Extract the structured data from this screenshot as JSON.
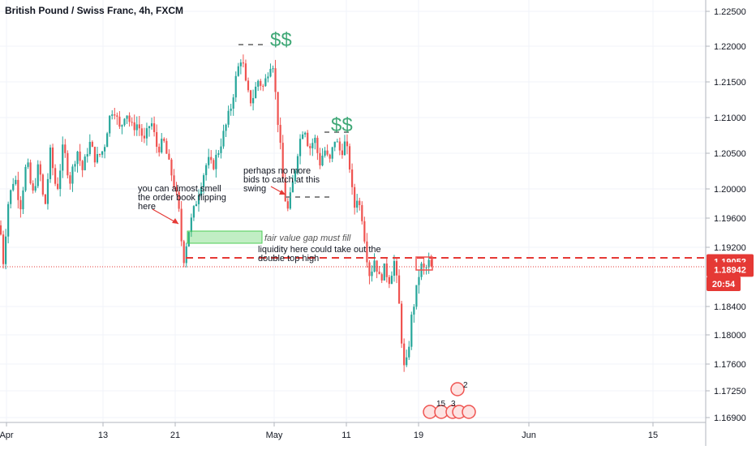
{
  "chart_data": {
    "type": "candlestick",
    "title": "British Pound / Swiss Franc, 4h, FXCM",
    "ylim": [
      1.1685,
      1.2265
    ],
    "y_ticks": [
      "1.22500",
      "1.22000",
      "1.21500",
      "1.21000",
      "1.20500",
      "1.20000",
      "1.19600",
      "1.19200",
      "1.18400",
      "1.18000",
      "1.17600",
      "1.17250",
      "1.16900"
    ],
    "x_ticks": [
      "Apr",
      "13",
      "21",
      "May",
      "11",
      "19",
      "Jun",
      "15"
    ],
    "colors": {
      "up": "#26a69a",
      "down": "#ef5350",
      "label_red": "#e53935"
    },
    "price_labels": [
      {
        "text": "1.19052",
        "value": 1.19052
      },
      {
        "text": "1.18942",
        "value": 1.18942
      },
      {
        "text": "20:54",
        "value": 1.18745
      }
    ],
    "path_points": [
      [
        0,
        1.1955
      ],
      [
        4,
        1.1905
      ],
      [
        10,
        1.1985
      ],
      [
        18,
        1.2025
      ],
      [
        25,
        1.198
      ],
      [
        33,
        1.2045
      ],
      [
        40,
        1.1995
      ],
      [
        48,
        1.204
      ],
      [
        55,
        1.1975
      ],
      [
        62,
        1.2055
      ],
      [
        70,
        1.2
      ],
      [
        78,
        1.2065
      ],
      [
        86,
        1.2015
      ],
      [
        95,
        1.206
      ],
      [
        102,
        1.203
      ],
      [
        110,
        1.207
      ],
      [
        118,
        1.2045
      ],
      [
        128,
        1.206
      ],
      [
        134,
        1.21
      ],
      [
        140,
        1.212
      ],
      [
        148,
        1.2085
      ],
      [
        155,
        1.2115
      ],
      [
        162,
        1.209
      ],
      [
        170,
        1.2095
      ],
      [
        178,
        1.207
      ],
      [
        186,
        1.21
      ],
      [
        194,
        1.206
      ],
      [
        202,
        1.207
      ],
      [
        208,
        1.204
      ],
      [
        214,
        1.2015
      ],
      [
        220,
        1.198
      ],
      [
        226,
        1.1905
      ],
      [
        232,
        1.1945
      ],
      [
        240,
        1.198
      ],
      [
        248,
        1.2015
      ],
      [
        256,
        1.2045
      ],
      [
        262,
        1.2035
      ],
      [
        270,
        1.206
      ],
      [
        278,
        1.209
      ],
      [
        285,
        1.212
      ],
      [
        292,
        1.2165
      ],
      [
        298,
        1.219
      ],
      [
        304,
        1.214
      ],
      [
        310,
        1.2125
      ],
      [
        318,
        1.2155
      ],
      [
        325,
        1.2145
      ],
      [
        332,
        1.2175
      ],
      [
        336,
        1.2185
      ],
      [
        340,
        1.213
      ],
      [
        345,
        1.207
      ],
      [
        350,
        1.2
      ],
      [
        355,
        1.1975
      ],
      [
        362,
        1.202
      ],
      [
        368,
        1.2065
      ],
      [
        375,
        1.2095
      ],
      [
        381,
        1.206
      ],
      [
        388,
        1.2075
      ],
      [
        394,
        1.204
      ],
      [
        400,
        1.206
      ],
      [
        406,
        1.204
      ],
      [
        413,
        1.2075
      ],
      [
        420,
        1.2055
      ],
      [
        426,
        1.207
      ],
      [
        432,
        1.203
      ],
      [
        436,
        1.1975
      ],
      [
        440,
        1.1995
      ],
      [
        446,
        1.197
      ],
      [
        452,
        1.1915
      ],
      [
        456,
        1.1885
      ],
      [
        462,
        1.191
      ],
      [
        468,
        1.188
      ],
      [
        474,
        1.1895
      ],
      [
        480,
        1.188
      ],
      [
        486,
        1.1905
      ],
      [
        490,
        1.187
      ],
      [
        494,
        1.182
      ],
      [
        497,
        1.176
      ],
      [
        500,
        1.1755
      ],
      [
        504,
        1.179
      ],
      [
        508,
        1.1835
      ],
      [
        512,
        1.1855
      ],
      [
        516,
        1.1885
      ],
      [
        520,
        1.19
      ],
      [
        524,
        1.189
      ],
      [
        528,
        1.1905
      ],
      [
        532,
        1.1895
      ]
    ]
  },
  "annotations": {
    "dollar_1": "$$",
    "dollar_2": "$$",
    "note_flip_1": "you can almost smell",
    "note_flip_2": "the order book flipping",
    "note_flip_3": "here",
    "note_bids_1": "perhaps no more",
    "note_bids_2": "bids to catch at this",
    "note_bids_3": "swing",
    "note_fvg": "fair value gap must fill",
    "note_liq_1": "liquidity here could take out the",
    "note_liq_2": "double top high",
    "badge_2": "2",
    "badge_15": "15",
    "badge_3": "3"
  }
}
